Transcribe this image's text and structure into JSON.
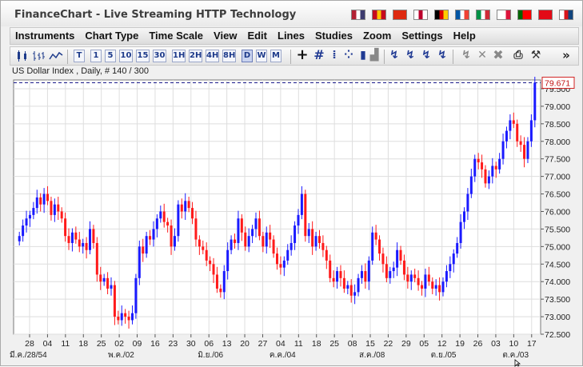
{
  "window": {
    "title": "FinanceChart - Live Streaming HTTP Technology"
  },
  "flags": [
    {
      "name": "us-flag-icon",
      "c1": "#b22234",
      "c2": "#ffffff",
      "c3": "#3c3b6e"
    },
    {
      "name": "spain-flag-icon",
      "c1": "#c60b1e",
      "c2": "#ffc400",
      "c3": "#c60b1e"
    },
    {
      "name": "china-flag-icon",
      "c1": "#de2910",
      "c2": "#de2910",
      "c3": "#de2910"
    },
    {
      "name": "japan-flag-icon",
      "c1": "#ffffff",
      "c2": "#bc002d",
      "c3": "#ffffff"
    },
    {
      "name": "germany-flag-icon",
      "c1": "#000000",
      "c2": "#dd0000",
      "c3": "#ffce00"
    },
    {
      "name": "france-flag-icon",
      "c1": "#0055a4",
      "c2": "#ffffff",
      "c3": "#ef4135"
    },
    {
      "name": "italy-flag-icon",
      "c1": "#009246",
      "c2": "#ffffff",
      "c3": "#ce2b37"
    },
    {
      "name": "poland-flag-icon",
      "c1": "#ffffff",
      "c2": "#ffffff",
      "c3": "#dc143c"
    },
    {
      "name": "portugal-flag-icon",
      "c1": "#006600",
      "c2": "#ff0000",
      "c3": "#ff0000"
    },
    {
      "name": "turkey-flag-icon",
      "c1": "#e30a17",
      "c2": "#e30a17",
      "c3": "#e30a17"
    },
    {
      "name": "czech-flag-icon",
      "c1": "#ffffff",
      "c2": "#d7141a",
      "c3": "#11457e"
    }
  ],
  "menu": [
    "Instruments",
    "Chart Type",
    "Time Scale",
    "View",
    "Edit",
    "Lines",
    "Studies",
    "Zoom",
    "Settings",
    "Help"
  ],
  "toolbar": {
    "periods": [
      "T",
      "1",
      "5",
      "10",
      "15",
      "30",
      "1H",
      "2H",
      "4H",
      "8H",
      "D",
      "W",
      "M"
    ],
    "selected_period": "D",
    "more": "»"
  },
  "chart_header": "US Dollar Index , Daily, # 140 / 300",
  "chart_data": {
    "type": "candlestick",
    "up_color": "#1a1aff",
    "down_color": "#ff1a1a",
    "ylim": [
      72.5,
      79.75
    ],
    "yticks": [
      "79.500",
      "79.000",
      "78.500",
      "78.000",
      "77.500",
      "77.000",
      "76.500",
      "76.000",
      "75.500",
      "75.000",
      "74.500",
      "74.000",
      "73.500",
      "73.000",
      "72.500"
    ],
    "last_price": "79.671",
    "last_price_value": 79.671,
    "xticks": [
      "28",
      "04",
      "11",
      "18",
      "25",
      "02",
      "09",
      "16",
      "23",
      "30",
      "06",
      "13",
      "20",
      "27",
      "04",
      "11",
      "18",
      "25",
      "08",
      "15",
      "22",
      "29",
      "05",
      "12",
      "19",
      "26",
      "03",
      "10",
      "17"
    ],
    "month_labels": [
      "มี.ค./28/54",
      "พ.ค./02",
      "มิ.ย./06",
      "ค.ค./04",
      "ส.ค./08",
      "ต.ย./05",
      "ต.ค./03"
    ],
    "closes": [
      75.3,
      75.6,
      75.8,
      75.9,
      76.1,
      76.4,
      76.2,
      76.5,
      76.3,
      75.9,
      76.2,
      76.0,
      75.8,
      75.3,
      75.1,
      75.4,
      75.2,
      75.0,
      75.1,
      74.9,
      75.5,
      75.1,
      74.2,
      74.0,
      74.1,
      73.8,
      73.9,
      73.0,
      72.9,
      73.1,
      73.0,
      72.9,
      73.1,
      74.1,
      75.0,
      74.8,
      75.3,
      75.2,
      75.5,
      75.8,
      76.0,
      75.7,
      75.6,
      75.0,
      75.3,
      76.2,
      76.0,
      76.3,
      76.1,
      75.8,
      75.2,
      75.0,
      74.9,
      74.6,
      74.5,
      74.2,
      73.8,
      73.7,
      74.3,
      74.9,
      75.2,
      75.1,
      75.8,
      75.4,
      75.0,
      75.3,
      75.5,
      75.8,
      75.3,
      75.0,
      75.4,
      75.2,
      74.8,
      74.5,
      74.4,
      74.6,
      74.9,
      75.1,
      75.6,
      75.9,
      76.5,
      75.3,
      75.5,
      75.0,
      75.3,
      75.1,
      74.9,
      74.6,
      74.1,
      74.0,
      74.3,
      74.1,
      73.8,
      73.9,
      73.6,
      73.7,
      74.1,
      74.3,
      74.0,
      74.6,
      75.4,
      75.2,
      74.8,
      74.5,
      74.1,
      74.3,
      74.4,
      74.9,
      74.6,
      74.2,
      74.0,
      74.2,
      74.1,
      73.9,
      73.8,
      74.2,
      74.0,
      73.8,
      73.9,
      73.7,
      74.0,
      74.3,
      74.5,
      74.8,
      75.1,
      75.7,
      76.0,
      76.5,
      77.0,
      77.5,
      77.4,
      77.2,
      76.8,
      77.0,
      77.3,
      77.2,
      77.5,
      78.0,
      78.3,
      78.6,
      78.5,
      78.0,
      77.9,
      77.5,
      78.0,
      78.6,
      79.671
    ]
  }
}
